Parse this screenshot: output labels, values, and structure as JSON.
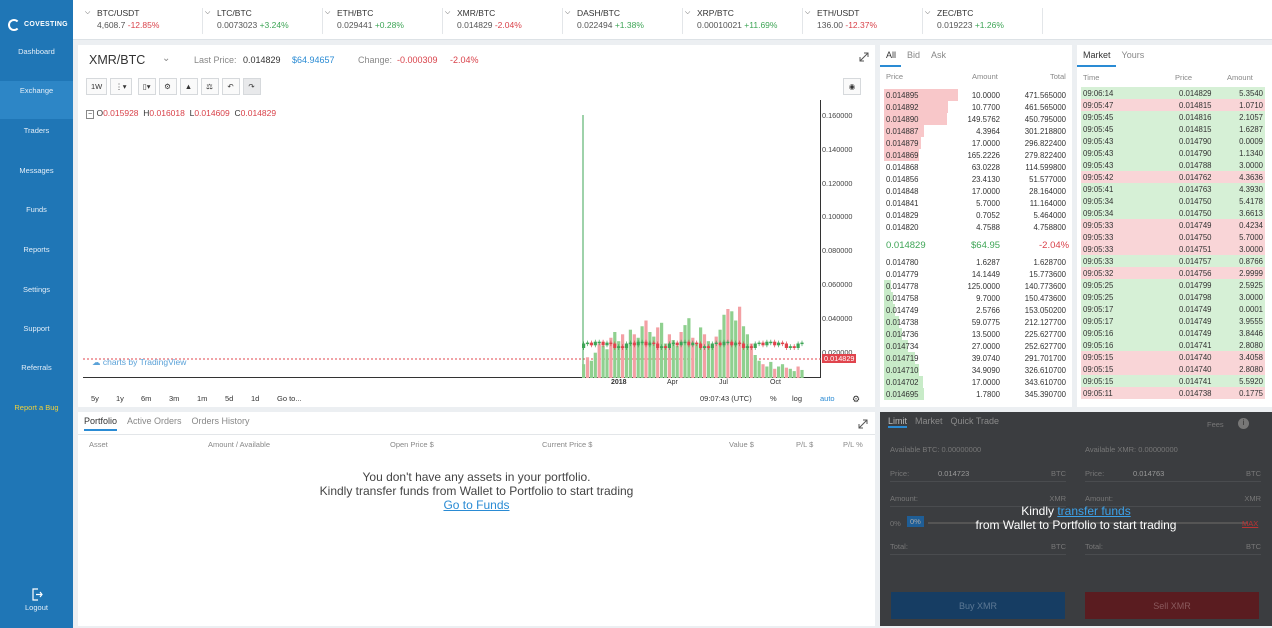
{
  "app": {
    "name": "COVESTING"
  },
  "sidebar": [
    {
      "label": "Dashboard",
      "icon": "dashboard-icon"
    },
    {
      "label": "Exchange",
      "icon": "exchange-icon",
      "active": true
    },
    {
      "label": "Traders",
      "icon": "search-icon"
    },
    {
      "label": "Messages",
      "icon": "messages-icon"
    },
    {
      "label": "Funds",
      "icon": "wallet-icon"
    },
    {
      "label": "Reports",
      "icon": "clock-icon"
    },
    {
      "label": "Settings",
      "icon": "gear-icon"
    },
    {
      "label": "Support",
      "icon": "headset-icon"
    },
    {
      "label": "Referrals",
      "icon": "people-icon"
    },
    {
      "label": "Report a Bug",
      "icon": "bug-icon"
    }
  ],
  "logout": "Logout",
  "ticker": [
    {
      "pair": "BTC/USDT",
      "price": "4,608.7",
      "change": "-12.85%",
      "dir": "neg"
    },
    {
      "pair": "LTC/BTC",
      "price": "0.0073023",
      "change": "+3.24%",
      "dir": "pos"
    },
    {
      "pair": "ETH/BTC",
      "price": "0.029441",
      "change": "+0.28%",
      "dir": "pos"
    },
    {
      "pair": "XMR/BTC",
      "price": "0.014829",
      "change": "-2.04%",
      "dir": "neg"
    },
    {
      "pair": "DASH/BTC",
      "price": "0.022494",
      "change": "+1.38%",
      "dir": "pos"
    },
    {
      "pair": "XRP/BTC",
      "price": "0.00010021",
      "change": "+11.69%",
      "dir": "pos"
    },
    {
      "pair": "ETH/USDT",
      "price": "136.00",
      "change": "-12.37%",
      "dir": "neg"
    },
    {
      "pair": "ZEC/BTC",
      "price": "0.019223",
      "change": "+1.26%",
      "dir": "pos"
    }
  ],
  "chart_header": {
    "symbol": "XMR/BTC",
    "last_price_label": "Last Price:",
    "last_price": "0.014829",
    "last_price_usd": "$64.94657",
    "change_label": "Change:",
    "change_abs": "-0.000309",
    "change_pct": "-2.04%"
  },
  "chart_toolbar": {
    "interval": "1W"
  },
  "ohlc": {
    "o": "0.015928",
    "h": "0.016018",
    "l": "0.014609",
    "c": "0.014829"
  },
  "chart_data": {
    "type": "bar",
    "y_ticks": [
      "0.160000",
      "0.140000",
      "0.120000",
      "0.100000",
      "0.080000",
      "0.060000",
      "0.040000",
      "0.020000"
    ],
    "last_value_label": "0.014829",
    "x_ticks": [
      "2018",
      "Apr",
      "Jul",
      "Oct"
    ],
    "watermark": "charts by TradingView",
    "ylim": [
      0,
      0.17
    ],
    "volume_bars": [
      12,
      18,
      15,
      22,
      30,
      28,
      25,
      35,
      40,
      32,
      38,
      30,
      42,
      38,
      35,
      45,
      50,
      40,
      36,
      44,
      48,
      30,
      38,
      33,
      28,
      40,
      46,
      52,
      35,
      30,
      44,
      38,
      32,
      28,
      36,
      42,
      55,
      60,
      58,
      50,
      62,
      45,
      38,
      30,
      20,
      15,
      12,
      10,
      14,
      8,
      10,
      12,
      9,
      8,
      6,
      10,
      7
    ]
  },
  "chart_footer": {
    "ranges": [
      "5y",
      "1y",
      "6m",
      "3m",
      "1m",
      "5d",
      "1d",
      "Go to..."
    ],
    "time": "09:07:43 (UTC)",
    "percent": "%",
    "log": "log",
    "auto": "auto"
  },
  "orderbook": {
    "tabs": [
      "All",
      "Bid",
      "Ask"
    ],
    "headers": [
      "Price",
      "Amount",
      "Total"
    ],
    "asks": [
      {
        "price": "0.014895",
        "amount": "10.0000",
        "total": "471.565000",
        "depth": 0.4
      },
      {
        "price": "0.014892",
        "amount": "10.7700",
        "total": "461.565000",
        "depth": 0.35
      },
      {
        "price": "0.014890",
        "amount": "149.5762",
        "total": "450.795000",
        "depth": 0.34
      },
      {
        "price": "0.014887",
        "amount": "4.3964",
        "total": "301.218800",
        "depth": 0.22
      },
      {
        "price": "0.014879",
        "amount": "17.0000",
        "total": "296.822400",
        "depth": 0.2
      },
      {
        "price": "0.014869",
        "amount": "165.2226",
        "total": "279.822400",
        "depth": 0.19
      },
      {
        "price": "0.014868",
        "amount": "63.0228",
        "total": "114.599800",
        "depth": 0.0
      },
      {
        "price": "0.014856",
        "amount": "23.4130",
        "total": "51.577000",
        "depth": 0.0
      },
      {
        "price": "0.014848",
        "amount": "17.0000",
        "total": "28.164000",
        "depth": 0.0
      },
      {
        "price": "0.014841",
        "amount": "5.7000",
        "total": "11.164000",
        "depth": 0.0
      },
      {
        "price": "0.014829",
        "amount": "0.7052",
        "total": "5.464000",
        "depth": 0.0
      },
      {
        "price": "0.014820",
        "amount": "4.7588",
        "total": "4.758800",
        "depth": 0.0
      }
    ],
    "mid": {
      "price": "0.014829",
      "usd": "$64.95",
      "change": "-2.04%"
    },
    "bids": [
      {
        "price": "0.014780",
        "amount": "1.6287",
        "total": "1.628700",
        "depth": 0.0
      },
      {
        "price": "0.014779",
        "amount": "14.1449",
        "total": "15.773600",
        "depth": 0.0
      },
      {
        "price": "0.014778",
        "amount": "125.0000",
        "total": "140.773600",
        "depth": 0.04
      },
      {
        "price": "0.014758",
        "amount": "9.7000",
        "total": "150.473600",
        "depth": 0.05
      },
      {
        "price": "0.014749",
        "amount": "2.5766",
        "total": "153.050200",
        "depth": 0.06
      },
      {
        "price": "0.014738",
        "amount": "59.0775",
        "total": "212.127700",
        "depth": 0.08
      },
      {
        "price": "0.014736",
        "amount": "13.5000",
        "total": "225.627700",
        "depth": 0.1
      },
      {
        "price": "0.014734",
        "amount": "27.0000",
        "total": "252.627700",
        "depth": 0.13
      },
      {
        "price": "0.014719",
        "amount": "39.0740",
        "total": "291.701700",
        "depth": 0.17
      },
      {
        "price": "0.014710",
        "amount": "34.9090",
        "total": "326.610700",
        "depth": 0.19
      },
      {
        "price": "0.014702",
        "amount": "17.0000",
        "total": "343.610700",
        "depth": 0.21
      },
      {
        "price": "0.014695",
        "amount": "1.7800",
        "total": "345.390700",
        "depth": 0.22
      }
    ]
  },
  "trades": {
    "tabs": [
      "Market",
      "Yours"
    ],
    "headers": [
      "Time",
      "Price",
      "Amount"
    ],
    "rows": [
      {
        "time": "09:06:14",
        "price": "0.014829",
        "amount": "5.3540",
        "side": "buy"
      },
      {
        "time": "09:05:47",
        "price": "0.014815",
        "amount": "1.0710",
        "side": "sell"
      },
      {
        "time": "09:05:45",
        "price": "0.014816",
        "amount": "2.1057",
        "side": "buy"
      },
      {
        "time": "09:05:45",
        "price": "0.014815",
        "amount": "1.6287",
        "side": "buy"
      },
      {
        "time": "09:05:43",
        "price": "0.014790",
        "amount": "0.0009",
        "side": "buy"
      },
      {
        "time": "09:05:43",
        "price": "0.014790",
        "amount": "1.1340",
        "side": "buy"
      },
      {
        "time": "09:05:43",
        "price": "0.014788",
        "amount": "3.0000",
        "side": "buy"
      },
      {
        "time": "09:05:42",
        "price": "0.014762",
        "amount": "4.3636",
        "side": "sell"
      },
      {
        "time": "09:05:41",
        "price": "0.014763",
        "amount": "4.3930",
        "side": "buy"
      },
      {
        "time": "09:05:34",
        "price": "0.014750",
        "amount": "5.4178",
        "side": "buy"
      },
      {
        "time": "09:05:34",
        "price": "0.014750",
        "amount": "3.6613",
        "side": "buy"
      },
      {
        "time": "09:05:33",
        "price": "0.014749",
        "amount": "0.4234",
        "side": "sell"
      },
      {
        "time": "09:05:33",
        "price": "0.014750",
        "amount": "5.7000",
        "side": "sell"
      },
      {
        "time": "09:05:33",
        "price": "0.014751",
        "amount": "3.0000",
        "side": "sell"
      },
      {
        "time": "09:05:33",
        "price": "0.014757",
        "amount": "0.8766",
        "side": "buy"
      },
      {
        "time": "09:05:32",
        "price": "0.014756",
        "amount": "2.9999",
        "side": "sell"
      },
      {
        "time": "09:05:25",
        "price": "0.014799",
        "amount": "2.5925",
        "side": "buy"
      },
      {
        "time": "09:05:25",
        "price": "0.014798",
        "amount": "3.0000",
        "side": "buy"
      },
      {
        "time": "09:05:17",
        "price": "0.014749",
        "amount": "0.0001",
        "side": "buy"
      },
      {
        "time": "09:05:17",
        "price": "0.014749",
        "amount": "3.9555",
        "side": "buy"
      },
      {
        "time": "09:05:16",
        "price": "0.014749",
        "amount": "3.8446",
        "side": "buy"
      },
      {
        "time": "09:05:16",
        "price": "0.014741",
        "amount": "2.8080",
        "side": "buy"
      },
      {
        "time": "09:05:15",
        "price": "0.014740",
        "amount": "3.4058",
        "side": "sell"
      },
      {
        "time": "09:05:15",
        "price": "0.014740",
        "amount": "2.8080",
        "side": "sell"
      },
      {
        "time": "09:05:15",
        "price": "0.014741",
        "amount": "5.5920",
        "side": "buy"
      },
      {
        "time": "09:05:11",
        "price": "0.014738",
        "amount": "0.1775",
        "side": "sell"
      }
    ]
  },
  "portfolio": {
    "tabs": [
      "Portfolio",
      "Active Orders",
      "Orders History"
    ],
    "columns": [
      "Asset",
      "Amount / Available",
      "Open Price $",
      "Current Price $",
      "Value $",
      "P/L $",
      "P/L %"
    ],
    "empty_line1": "You don't have any assets in your portfolio.",
    "empty_line2": "Kindly transfer funds from Wallet to Portfolio to start trading",
    "link": "Go to Funds"
  },
  "trade_form": {
    "tabs": [
      "Limit",
      "Market",
      "Quick Trade"
    ],
    "fees": "Fees",
    "avail_btc": "Available BTC: 0.00000000",
    "avail_xmr": "Available XMR: 0.00000000",
    "price_label": "Price:",
    "buy_price": "0.014723",
    "sell_price": "0.014763",
    "btc": "BTC",
    "xmr": "XMR",
    "amount_label": "Amount:",
    "pct0": "0%",
    "pct_badge": "0%",
    "max": "MAX",
    "total_label": "Total:",
    "overlay_pre": "Kindly",
    "overlay_link": "transfer funds",
    "overlay_post": "from Wallet to Portfolio to start trading",
    "buy_label": "Buy XMR",
    "sell_label": "Sell XMR"
  },
  "colors": {
    "accent": "#2a8bd4",
    "up": "#3ea556",
    "down": "#d9424a",
    "sidebar": "#1f76b6"
  }
}
